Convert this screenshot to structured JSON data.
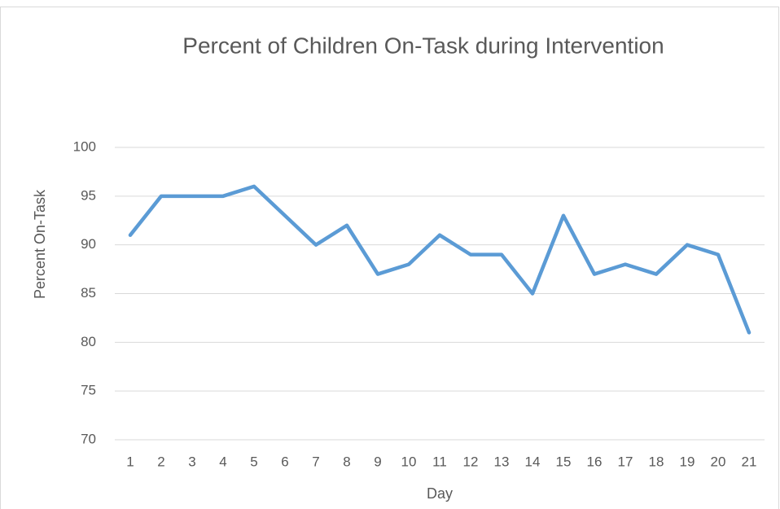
{
  "chart_data": {
    "type": "line",
    "title": "Percent of Children On-Task during Intervention",
    "x_label": "Day",
    "y_label": "Percent On-Task",
    "categories": [
      1,
      2,
      3,
      4,
      5,
      6,
      7,
      8,
      9,
      10,
      11,
      12,
      13,
      14,
      15,
      16,
      17,
      18,
      19,
      20,
      21
    ],
    "series": [
      {
        "name": "Percent On-Task",
        "color": "#5b9bd5",
        "values": [
          91,
          95,
          95,
          95,
          96,
          93,
          90,
          92,
          87,
          88,
          91,
          89,
          89,
          85,
          93,
          87,
          88,
          87,
          90,
          89,
          81
        ]
      }
    ],
    "ylim": [
      70,
      100
    ],
    "yticks": [
      70,
      75,
      80,
      85,
      90,
      95,
      100
    ],
    "grid": true
  }
}
